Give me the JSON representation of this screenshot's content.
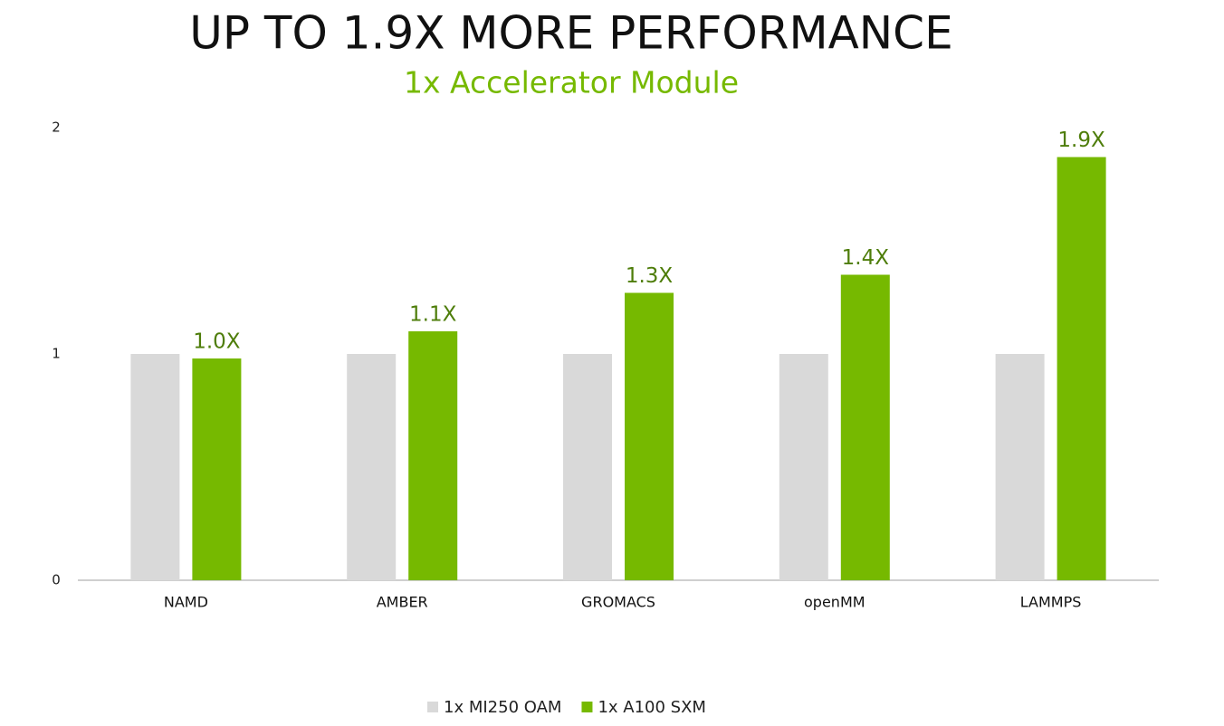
{
  "chart_data": {
    "type": "bar",
    "title": "UP TO 1.9X MORE PERFORMANCE",
    "subtitle": "1x Accelerator Module",
    "categories": [
      "NAMD",
      "AMBER",
      "GROMACS",
      "openMM",
      "LAMMPS"
    ],
    "series": [
      {
        "name": "1x MI250 OAM",
        "color": "#d9d9d9",
        "values": [
          1,
          1,
          1,
          1,
          1
        ]
      },
      {
        "name": "1x A100 SXM",
        "color": "#76b900",
        "values": [
          0.98,
          1.1,
          1.27,
          1.35,
          1.87
        ],
        "value_labels": [
          "1.0X",
          "1.1X",
          "1.3X",
          "1.4X",
          "1.9X"
        ]
      }
    ],
    "ylim": [
      0,
      2
    ],
    "yticks": [
      0,
      1,
      2
    ],
    "grid": false,
    "legend": "bottom"
  }
}
